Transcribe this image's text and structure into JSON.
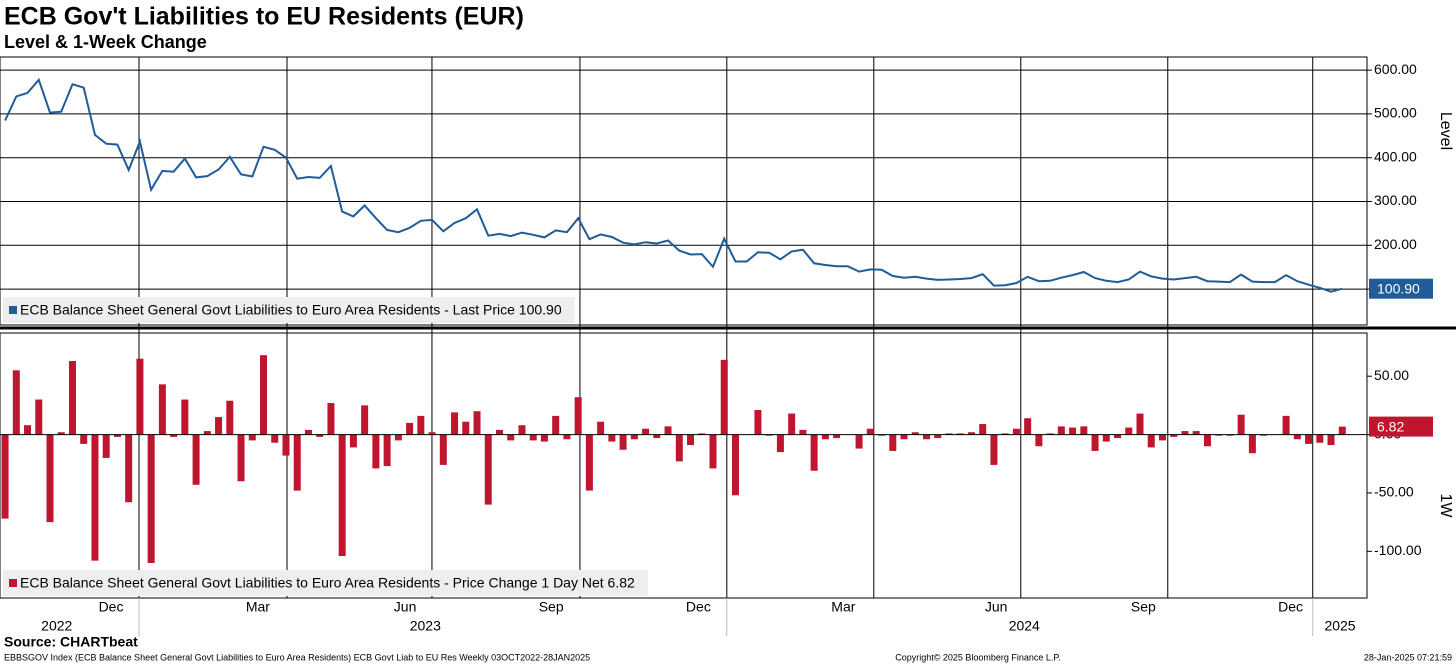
{
  "title": "ECB Gov't Liabilities to EU Residents (EUR)",
  "subtitle": "Level & 1-Week Change",
  "source": "Source: CHARTbeat",
  "footer": {
    "left": "EBBSGOV Index (ECB Balance Sheet General Govt Liabilities to Euro Area Residents) ECB Govt Liab to EU Res  Weekly 03OCT2022-28JAN2025",
    "center": "Copyright© 2025 Bloomberg Finance L.P.",
    "right": "28-Jan-2025 07:21:59"
  },
  "x_axis": {
    "xlim": [
      -0.45,
      121.2
    ],
    "xticks": [
      {
        "value": 9.43,
        "label": "Dec"
      },
      {
        "value": 22.5,
        "label": "Mar"
      },
      {
        "value": 35.6,
        "label": "Jun"
      },
      {
        "value": 48.6,
        "label": "Sep"
      },
      {
        "value": 61.7,
        "label": "Dec"
      },
      {
        "value": 74.6,
        "label": "Mar"
      },
      {
        "value": 88.2,
        "label": "Jun"
      },
      {
        "value": 101.3,
        "label": "Sep"
      },
      {
        "value": 114.4,
        "label": "Dec"
      }
    ],
    "xgrid": [
      11.92,
      25.09,
      37.99,
      51.16,
      64.23,
      77.31,
      90.39,
      103.47,
      116.37
    ],
    "years": [
      {
        "value": 4.6,
        "label": "2022"
      },
      {
        "value": 37.4,
        "label": "2023"
      },
      {
        "value": 90.7,
        "label": "2024"
      },
      {
        "value": 118.8,
        "label": "2025"
      }
    ],
    "year_breaks": [
      11.92,
      64.23,
      116.37
    ]
  },
  "chart_data": [
    {
      "type": "line",
      "ylabel": "Level",
      "ylim": [
        18,
        630
      ],
      "yticks": [
        {
          "value": 100,
          "label": "100.00"
        },
        {
          "value": 200,
          "label": "200.00"
        },
        {
          "value": 300,
          "label": "300.00"
        },
        {
          "value": 400,
          "label": "400.00"
        },
        {
          "value": 500,
          "label": "500.00"
        },
        {
          "value": 600,
          "label": "600.00"
        }
      ],
      "grid": true,
      "last_label": "100.90",
      "series": [
        {
          "name": "ECB Balance Sheet General Govt Liabilities to Euro Area Residents - Last Price 100.90",
          "color": "#1f5c99",
          "values": [
            485,
            540,
            548,
            578,
            503,
            505,
            568,
            560,
            452,
            432,
            430,
            372,
            437,
            327,
            370,
            368,
            398,
            355,
            358,
            373,
            402,
            362,
            357,
            425,
            418,
            400,
            352,
            356,
            354,
            381,
            277,
            266,
            291,
            262,
            235,
            230,
            240,
            256,
            258,
            232,
            251,
            262,
            282,
            222,
            226,
            221,
            229,
            224,
            218,
            234,
            230,
            262,
            214,
            225,
            219,
            206,
            202,
            207,
            204,
            211,
            188,
            179,
            180,
            151,
            215,
            163,
            163,
            184,
            183,
            168,
            186,
            190,
            159,
            155,
            152,
            152,
            140,
            145,
            144,
            130,
            126,
            128,
            124,
            121,
            122,
            123,
            125,
            134,
            108,
            109,
            114,
            128,
            118,
            119,
            126,
            132,
            139,
            125,
            119,
            116,
            122,
            140,
            129,
            124,
            122,
            125,
            128,
            118,
            117,
            116,
            133,
            117,
            116,
            116,
            132,
            118,
            110,
            103,
            94,
            100.9
          ]
        }
      ]
    },
    {
      "type": "bar",
      "ylabel": "1W",
      "ylim": [
        -140,
        87
      ],
      "yticks": [
        {
          "value": -100,
          "label": "-100.00"
        },
        {
          "value": -50,
          "label": "-50.00"
        },
        {
          "value": 0,
          "label": "0.00"
        },
        {
          "value": 50,
          "label": "50.00"
        }
      ],
      "last_label": "6.82",
      "series": [
        {
          "name": "ECB Balance Sheet General Govt Liabilities to Euro Area Residents - Price Change 1 Day Net 6.82",
          "color": "#c0152f",
          "values": [
            -72,
            55,
            8,
            30,
            -75,
            2,
            63,
            -8,
            -108,
            -20,
            -2,
            -58,
            65,
            -110,
            43,
            -2,
            30,
            -43,
            3,
            15,
            29,
            -40,
            -5,
            68,
            -7,
            -18,
            -48,
            4,
            -2,
            27,
            -104,
            -11,
            25,
            -29,
            -27,
            -5,
            10,
            16,
            2,
            -26,
            19,
            11,
            20,
            -60,
            4,
            -5,
            8,
            -5,
            -6,
            16,
            -4,
            32,
            -48,
            11,
            -6,
            -13,
            -4,
            5,
            -3,
            7,
            -23,
            -9,
            1,
            -29,
            64,
            -52,
            0,
            21,
            -1,
            -15,
            18,
            4,
            -31,
            -4,
            -3,
            0,
            -12,
            5,
            -1,
            -14,
            -4,
            2,
            -4,
            -3,
            1,
            1,
            2,
            9,
            -26,
            1,
            5,
            14,
            -10,
            1,
            7,
            6,
            7,
            -14,
            -6,
            -3,
            6,
            18,
            -11,
            -5,
            -2,
            3,
            3,
            -10,
            -1,
            -1,
            17,
            -16,
            -1,
            0,
            16,
            -4,
            -8,
            -7,
            -9,
            6.82
          ]
        }
      ]
    }
  ]
}
